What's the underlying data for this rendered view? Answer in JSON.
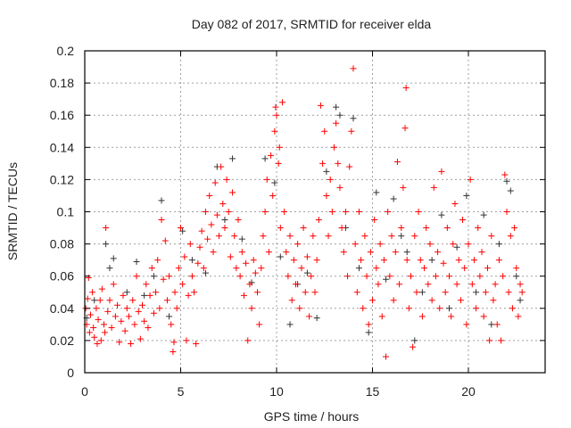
{
  "chart_data": {
    "type": "scatter",
    "title": "Day 082 of 2017, SRMTID for receiver elda",
    "xlabel": "GPS time / hours",
    "ylabel": "SRMTID / TECUs",
    "xlim": [
      0,
      24
    ],
    "ylim": [
      0,
      0.2
    ],
    "xticks": [
      0,
      5,
      10,
      15,
      20
    ],
    "xtick_labels": [
      "0",
      "5",
      "10",
      "15",
      "20"
    ],
    "yticks": [
      0,
      0.02,
      0.04,
      0.06,
      0.08,
      0.1,
      0.12,
      0.14,
      0.16,
      0.18,
      0.2
    ],
    "ytick_labels": [
      "0",
      "0.02",
      "0.04",
      "0.06",
      "0.08",
      "0.1",
      "0.12",
      "0.14",
      "0.16",
      "0.18",
      "0.2"
    ],
    "grid": true,
    "marker": "plus",
    "series": [
      {
        "name": "black",
        "color": "#333333",
        "points": [
          [
            0.1,
            0.034
          ],
          [
            0.5,
            0.045
          ],
          [
            1.1,
            0.08
          ],
          [
            1.3,
            0.065
          ],
          [
            1.5,
            0.071
          ],
          [
            2.2,
            0.05
          ],
          [
            2.7,
            0.069
          ],
          [
            3.1,
            0.048
          ],
          [
            3.6,
            0.06
          ],
          [
            4.0,
            0.107
          ],
          [
            4.4,
            0.035
          ],
          [
            5.1,
            0.088
          ],
          [
            5.6,
            0.07
          ],
          [
            6.3,
            0.062
          ],
          [
            6.9,
            0.128
          ],
          [
            7.3,
            0.095
          ],
          [
            7.7,
            0.133
          ],
          [
            8.2,
            0.083
          ],
          [
            8.7,
            0.056
          ],
          [
            9.4,
            0.133
          ],
          [
            9.9,
            0.118
          ],
          [
            10.2,
            0.072
          ],
          [
            10.7,
            0.03
          ],
          [
            11.1,
            0.055
          ],
          [
            11.6,
            0.062
          ],
          [
            12.1,
            0.034
          ],
          [
            12.6,
            0.125
          ],
          [
            13.1,
            0.165
          ],
          [
            13.3,
            0.16
          ],
          [
            13.6,
            0.09
          ],
          [
            14.0,
            0.158
          ],
          [
            14.3,
            0.065
          ],
          [
            14.8,
            0.025
          ],
          [
            15.2,
            0.112
          ],
          [
            15.7,
            0.058
          ],
          [
            16.1,
            0.108
          ],
          [
            16.5,
            0.085
          ],
          [
            16.8,
            0.075
          ],
          [
            17.2,
            0.02
          ],
          [
            17.6,
            0.05
          ],
          [
            18.1,
            0.07
          ],
          [
            18.6,
            0.098
          ],
          [
            19.0,
            0.04
          ],
          [
            19.4,
            0.078
          ],
          [
            19.9,
            0.11
          ],
          [
            20.4,
            0.05
          ],
          [
            20.8,
            0.098
          ],
          [
            21.2,
            0.03
          ],
          [
            21.6,
            0.08
          ],
          [
            22.0,
            0.119
          ],
          [
            22.2,
            0.113
          ],
          [
            22.5,
            0.06
          ],
          [
            22.7,
            0.045
          ]
        ]
      },
      {
        "name": "red",
        "color": "#ff0000",
        "points": [
          [
            0.05,
            0.04
          ],
          [
            0.1,
            0.03
          ],
          [
            0.15,
            0.046
          ],
          [
            0.2,
            0.059
          ],
          [
            0.25,
            0.025
          ],
          [
            0.3,
            0.036
          ],
          [
            0.4,
            0.05
          ],
          [
            0.45,
            0.028
          ],
          [
            0.5,
            0.022
          ],
          [
            0.6,
            0.04
          ],
          [
            0.65,
            0.018
          ],
          [
            0.7,
            0.033
          ],
          [
            0.8,
            0.045
          ],
          [
            0.85,
            0.02
          ],
          [
            0.9,
            0.052
          ],
          [
            1.0,
            0.03
          ],
          [
            1.05,
            0.025
          ],
          [
            1.1,
            0.09
          ],
          [
            1.2,
            0.038
          ],
          [
            1.3,
            0.045
          ],
          [
            1.4,
            0.028
          ],
          [
            1.5,
            0.055
          ],
          [
            1.6,
            0.035
          ],
          [
            1.7,
            0.042
          ],
          [
            1.8,
            0.019
          ],
          [
            1.9,
            0.032
          ],
          [
            2.0,
            0.048
          ],
          [
            2.1,
            0.026
          ],
          [
            2.2,
            0.04
          ],
          [
            2.3,
            0.035
          ],
          [
            2.4,
            0.018
          ],
          [
            2.5,
            0.045
          ],
          [
            2.6,
            0.03
          ],
          [
            2.7,
            0.06
          ],
          [
            2.8,
            0.038
          ],
          [
            2.9,
            0.021
          ],
          [
            3.0,
            0.042
          ],
          [
            3.1,
            0.032
          ],
          [
            3.2,
            0.055
          ],
          [
            3.3,
            0.028
          ],
          [
            3.4,
            0.048
          ],
          [
            3.5,
            0.065
          ],
          [
            3.6,
            0.037
          ],
          [
            3.7,
            0.05
          ],
          [
            3.8,
            0.07
          ],
          [
            3.9,
            0.04
          ],
          [
            4.0,
            0.095
          ],
          [
            4.1,
            0.058
          ],
          [
            4.2,
            0.082
          ],
          [
            4.3,
            0.045
          ],
          [
            4.4,
            0.06
          ],
          [
            4.5,
            0.03
          ],
          [
            4.6,
            0.013
          ],
          [
            4.65,
            0.019
          ],
          [
            4.7,
            0.05
          ],
          [
            4.8,
            0.04
          ],
          [
            4.9,
            0.065
          ],
          [
            5.0,
            0.09
          ],
          [
            5.1,
            0.055
          ],
          [
            5.2,
            0.072
          ],
          [
            5.3,
            0.02
          ],
          [
            5.4,
            0.048
          ],
          [
            5.5,
            0.08
          ],
          [
            5.6,
            0.06
          ],
          [
            5.7,
            0.05
          ],
          [
            5.8,
            0.018
          ],
          [
            5.9,
            0.068
          ],
          [
            6.0,
            0.078
          ],
          [
            6.1,
            0.088
          ],
          [
            6.2,
            0.065
          ],
          [
            6.3,
            0.1
          ],
          [
            6.4,
            0.083
          ],
          [
            6.5,
            0.11
          ],
          [
            6.6,
            0.092
          ],
          [
            6.7,
            0.075
          ],
          [
            6.8,
            0.118
          ],
          [
            6.9,
            0.098
          ],
          [
            7.0,
            0.085
          ],
          [
            7.1,
            0.128
          ],
          [
            7.2,
            0.105
          ],
          [
            7.3,
            0.09
          ],
          [
            7.4,
            0.12
          ],
          [
            7.5,
            0.1
          ],
          [
            7.6,
            0.072
          ],
          [
            7.7,
            0.112
          ],
          [
            7.8,
            0.085
          ],
          [
            7.9,
            0.065
          ],
          [
            8.0,
            0.095
          ],
          [
            8.1,
            0.06
          ],
          [
            8.2,
            0.075
          ],
          [
            8.3,
            0.048
          ],
          [
            8.4,
            0.068
          ],
          [
            8.5,
            0.02
          ],
          [
            8.6,
            0.055
          ],
          [
            8.7,
            0.04
          ],
          [
            8.8,
            0.07
          ],
          [
            8.9,
            0.062
          ],
          [
            9.0,
            0.05
          ],
          [
            9.1,
            0.03
          ],
          [
            9.2,
            0.065
          ],
          [
            9.3,
            0.085
          ],
          [
            9.4,
            0.1
          ],
          [
            9.5,
            0.12
          ],
          [
            9.6,
            0.075
          ],
          [
            9.7,
            0.135
          ],
          [
            9.8,
            0.11
          ],
          [
            9.9,
            0.15
          ],
          [
            9.95,
            0.165
          ],
          [
            10.0,
            0.16
          ],
          [
            10.1,
            0.13
          ],
          [
            10.15,
            0.14
          ],
          [
            10.2,
            0.09
          ],
          [
            10.3,
            0.168
          ],
          [
            10.4,
            0.1
          ],
          [
            10.5,
            0.075
          ],
          [
            10.6,
            0.06
          ],
          [
            10.7,
            0.085
          ],
          [
            10.8,
            0.045
          ],
          [
            10.9,
            0.07
          ],
          [
            11.0,
            0.055
          ],
          [
            11.1,
            0.08
          ],
          [
            11.2,
            0.04
          ],
          [
            11.3,
            0.065
          ],
          [
            11.4,
            0.09
          ],
          [
            11.5,
            0.05
          ],
          [
            11.6,
            0.072
          ],
          [
            11.7,
            0.035
          ],
          [
            11.8,
            0.06
          ],
          [
            11.9,
            0.085
          ],
          [
            12.0,
            0.05
          ],
          [
            12.1,
            0.07
          ],
          [
            12.2,
            0.095
          ],
          [
            12.3,
            0.166
          ],
          [
            12.4,
            0.13
          ],
          [
            12.5,
            0.15
          ],
          [
            12.6,
            0.11
          ],
          [
            12.7,
            0.085
          ],
          [
            12.8,
            0.12
          ],
          [
            12.9,
            0.1
          ],
          [
            13.0,
            0.14
          ],
          [
            13.1,
            0.155
          ],
          [
            13.2,
            0.13
          ],
          [
            13.3,
            0.115
          ],
          [
            13.4,
            0.09
          ],
          [
            13.5,
            0.075
          ],
          [
            13.6,
            0.1
          ],
          [
            13.7,
            0.06
          ],
          [
            13.8,
            0.128
          ],
          [
            13.9,
            0.15
          ],
          [
            14.0,
            0.189
          ],
          [
            14.1,
            0.08
          ],
          [
            14.2,
            0.05
          ],
          [
            14.3,
            0.1
          ],
          [
            14.4,
            0.07
          ],
          [
            14.5,
            0.04
          ],
          [
            14.6,
            0.085
          ],
          [
            14.7,
            0.06
          ],
          [
            14.8,
            0.03
          ],
          [
            14.9,
            0.075
          ],
          [
            15.0,
            0.045
          ],
          [
            15.1,
            0.095
          ],
          [
            15.2,
            0.065
          ],
          [
            15.3,
            0.055
          ],
          [
            15.4,
            0.08
          ],
          [
            15.5,
            0.035
          ],
          [
            15.6,
            0.07
          ],
          [
            15.7,
            0.01
          ],
          [
            15.8,
            0.1
          ],
          [
            15.9,
            0.06
          ],
          [
            16.0,
            0.085
          ],
          [
            16.1,
            0.045
          ],
          [
            16.2,
            0.075
          ],
          [
            16.3,
            0.131
          ],
          [
            16.4,
            0.055
          ],
          [
            16.5,
            0.09
          ],
          [
            16.6,
            0.115
          ],
          [
            16.7,
            0.152
          ],
          [
            16.75,
            0.177
          ],
          [
            16.8,
            0.07
          ],
          [
            16.9,
            0.04
          ],
          [
            17.0,
            0.06
          ],
          [
            17.1,
            0.016
          ],
          [
            17.2,
            0.085
          ],
          [
            17.3,
            0.05
          ],
          [
            17.4,
            0.1
          ],
          [
            17.5,
            0.07
          ],
          [
            17.6,
            0.035
          ],
          [
            17.7,
            0.065
          ],
          [
            17.8,
            0.09
          ],
          [
            17.9,
            0.055
          ],
          [
            18.0,
            0.08
          ],
          [
            18.1,
            0.045
          ],
          [
            18.2,
            0.115
          ],
          [
            18.3,
            0.06
          ],
          [
            18.4,
            0.075
          ],
          [
            18.5,
            0.04
          ],
          [
            18.6,
            0.125
          ],
          [
            18.7,
            0.068
          ],
          [
            18.8,
            0.05
          ],
          [
            18.9,
            0.09
          ],
          [
            19.0,
            0.06
          ],
          [
            19.1,
            0.035
          ],
          [
            19.2,
            0.08
          ],
          [
            19.3,
            0.105
          ],
          [
            19.4,
            0.055
          ],
          [
            19.5,
            0.07
          ],
          [
            19.6,
            0.045
          ],
          [
            19.7,
            0.095
          ],
          [
            19.8,
            0.065
          ],
          [
            19.9,
            0.03
          ],
          [
            20.0,
            0.08
          ],
          [
            20.1,
            0.12
          ],
          [
            20.2,
            0.055
          ],
          [
            20.3,
            0.07
          ],
          [
            20.4,
            0.04
          ],
          [
            20.5,
            0.09
          ],
          [
            20.6,
            0.06
          ],
          [
            20.7,
            0.075
          ],
          [
            20.8,
            0.035
          ],
          [
            20.9,
            0.05
          ],
          [
            21.0,
            0.065
          ],
          [
            21.1,
            0.02
          ],
          [
            21.2,
            0.085
          ],
          [
            21.3,
            0.045
          ],
          [
            21.4,
            0.055
          ],
          [
            21.5,
            0.03
          ],
          [
            21.6,
            0.07
          ],
          [
            21.7,
            0.02
          ],
          [
            21.8,
            0.06
          ],
          [
            21.9,
            0.123
          ],
          [
            22.0,
            0.1
          ],
          [
            22.1,
            0.05
          ],
          [
            22.2,
            0.085
          ],
          [
            22.3,
            0.04
          ],
          [
            22.4,
            0.09
          ],
          [
            22.5,
            0.065
          ],
          [
            22.6,
            0.035
          ],
          [
            22.7,
            0.055
          ],
          [
            22.8,
            0.05
          ]
        ]
      }
    ]
  }
}
